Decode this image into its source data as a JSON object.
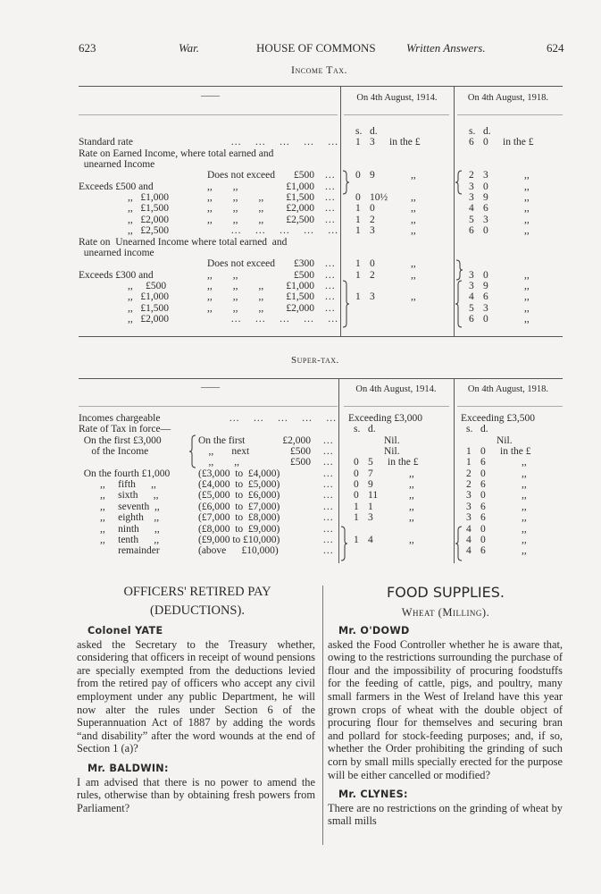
{
  "header": {
    "page_left": "623",
    "section_left": "War.",
    "title": "HOUSE OF COMMONS",
    "section_right": "Written Answers.",
    "page_right": "624"
  },
  "income_tax": {
    "title": "Income Tax.",
    "col0_header": "——",
    "col1_header": "On 4th August, 1914.",
    "col2_header": "On 4th August, 1918.",
    "rows": [
      {
        "t": "",
        "a": [
          "s.",
          "d.",
          ""
        ],
        "b": [
          "s.",
          "d.",
          ""
        ]
      },
      {
        "t": "Standard rate",
        "lead": true,
        "a": [
          "1",
          "3",
          "in the £"
        ],
        "b": [
          "6",
          "0",
          "in the £"
        ]
      },
      {
        "t": "Rate on Earned Income, where total earned and",
        "a": [
          "",
          "",
          ""
        ],
        "b": [
          "",
          "",
          ""
        ]
      },
      {
        "t": "  unearned Income",
        "a": [
          "",
          "",
          ""
        ],
        "b": [
          "",
          "",
          ""
        ]
      },
      {
        "m": "Does not exceed",
        "r": "£500",
        "dots": true,
        "a": [
          "0",
          "9",
          ",,"
        ],
        "b": [
          "2",
          "3",
          ",,"
        ]
      },
      {
        "t": "Exceeds £500 and",
        "m": ",,        ,,",
        "r": "£1,000",
        "dots": true,
        "a": [
          "",
          "",
          ""
        ],
        "b": [
          "3",
          "0",
          ",,"
        ]
      },
      {
        "s": ",,   £1,000",
        "m": ",,        ,,        ,,",
        "r": "£1,500",
        "dots": true,
        "a": [
          "0",
          "10½",
          ",,"
        ],
        "b": [
          "3",
          "9",
          ",,"
        ]
      },
      {
        "s": ",,   £1,500",
        "m": ",,        ,,        ,,",
        "r": "£2,000",
        "dots": true,
        "a": [
          "1",
          "0",
          ",,"
        ],
        "b": [
          "4",
          "6",
          ",,"
        ]
      },
      {
        "s": ",,   £2,000",
        "m": ",,        ,,        ,,",
        "r": "£2,500",
        "dots": true,
        "a": [
          "1",
          "2",
          ",,"
        ],
        "b": [
          "5",
          "3",
          ",,"
        ]
      },
      {
        "s": ",,   £2,500",
        "lead": true,
        "a": [
          "1",
          "3",
          ",,"
        ],
        "b": [
          "6",
          "0",
          ",,"
        ]
      },
      {
        "t": "Rate on  Unearned Income where total earned  and",
        "a": [
          "",
          "",
          ""
        ],
        "b": [
          "",
          "",
          ""
        ]
      },
      {
        "t": "  unearned income",
        "a": [
          "",
          "",
          ""
        ],
        "b": [
          "",
          "",
          ""
        ]
      },
      {
        "m": "Does not exceed",
        "r": "£300",
        "dots": true,
        "a": [
          "1",
          "0",
          ",,"
        ],
        "b": [
          "",
          "",
          ""
        ]
      },
      {
        "t": "Exceeds £300 and",
        "m": ",,        ,,",
        "r": "£500",
        "dots": true,
        "a": [
          "1",
          "2",
          ",,"
        ],
        "b": [
          "3",
          "0",
          ",,"
        ]
      },
      {
        "s": ",,     £500",
        "m": ",,        ,,        ,,",
        "r": "£1,000",
        "dots": true,
        "a": [
          "",
          "",
          ""
        ],
        "b": [
          "3",
          "9",
          ",,"
        ]
      },
      {
        "s": ",,   £1,000",
        "m": ",,        ,,        ,,",
        "r": "£1,500",
        "dots": true,
        "a": [
          "1",
          "3",
          ",,"
        ],
        "b": [
          "4",
          "6",
          ",,"
        ]
      },
      {
        "s": ",,   £1,500",
        "m": ",,        ,,        ,,",
        "r": "£2,000",
        "dots": true,
        "a": [
          "",
          "",
          ""
        ],
        "b": [
          "5",
          "3",
          ",,"
        ]
      },
      {
        "s": ",,   £2,000",
        "lead": true,
        "a": [
          "",
          "",
          ""
        ],
        "b": [
          "6",
          "0",
          ",,"
        ]
      }
    ]
  },
  "super_tax": {
    "title": "Super-tax.",
    "col0_header": "——",
    "col1_header": "On 4th August, 1914.",
    "col2_header": "On 4th August, 1918.",
    "rows": [
      {
        "t": "Incomes chargeable",
        "lead": true,
        "a": [
          "Exceeding £3,000",
          "",
          ""
        ],
        "b": [
          "Exceeding £3,500",
          "",
          ""
        ]
      },
      {
        "t": "Rate of Tax in force—",
        "a": [
          "s.",
          "d.",
          ""
        ],
        "b": [
          "s.",
          "d.",
          ""
        ]
      },
      {
        "t": "  On the first £3,000",
        "p": "On the first",
        "r": "£2,000",
        "dots": true,
        "a": [
          "",
          "",
          "Nil."
        ],
        "b": [
          "",
          "",
          "Nil."
        ]
      },
      {
        "t": "     of the Income",
        "p": "    ,,       next",
        "r": "£500",
        "dots": true,
        "a": [
          "",
          "",
          "Nil."
        ],
        "b": [
          "1",
          "0",
          "in the £"
        ]
      },
      {
        "p": "    ,,        ,,",
        "r": "£500",
        "dots": true,
        "a": [
          "0",
          "5",
          "in the £"
        ],
        "b": [
          "1",
          "6",
          ",,"
        ]
      },
      {
        "t": "  On the fourth £1,000",
        "p": "(£3,000  to  £4,000)",
        "dots": true,
        "a": [
          "0",
          "7",
          ",,"
        ],
        "b": [
          "2",
          "0",
          ",,"
        ]
      },
      {
        "s": ",,     fifth      ,,",
        "p": "(£4,000  to  £5,000)",
        "dots": true,
        "a": [
          "0",
          "9",
          ",,"
        ],
        "b": [
          "2",
          "6",
          ",,"
        ]
      },
      {
        "s": ",,     sixth      ,,",
        "p": "(£5,000  to  £6,000)",
        "dots": true,
        "a": [
          "0",
          "11",
          ",,"
        ],
        "b": [
          "3",
          "0",
          ",,"
        ]
      },
      {
        "s": ",,     seventh  ,,",
        "p": "(£6,000  to  £7,000)",
        "dots": true,
        "a": [
          "1",
          "1",
          ",,"
        ],
        "b": [
          "3",
          "6",
          ",,"
        ]
      },
      {
        "s": ",,     eighth    ,,",
        "p": "(£7,000  to  £8,000)",
        "dots": true,
        "a": [
          "1",
          "3",
          ",,"
        ],
        "b": [
          "3",
          "6",
          ",,"
        ]
      },
      {
        "s": ",,     ninth      ,,",
        "p": "(£8,000  to  £9,000)",
        "dots": true,
        "a": [
          "",
          "",
          ""
        ],
        "b": [
          "4",
          "0",
          ",,"
        ]
      },
      {
        "s": ",,     tenth      ,,",
        "p": "(£9,000 to £10,000)",
        "dots": true,
        "a": [
          "1",
          "4",
          ",,"
        ],
        "b": [
          "4",
          "0",
          ",,"
        ]
      },
      {
        "s": "       remainder",
        "p": "(above      £10,000)",
        "dots": true,
        "a": [
          "",
          "",
          ""
        ],
        "b": [
          "4",
          "6",
          ",,"
        ]
      }
    ]
  },
  "left_article": {
    "title": "OFFICERS' RETIRED PAY",
    "subtitle": "(DEDUCTIONS).",
    "paragraphs": [
      {
        "speaker": "Colonel YATE",
        "text": " asked the Secretary to the Treasury whether, considering that officers in receipt of wound pensions are specially exempted from the deductions levied from the retired pay of officers who accept any civil employment under any public Department, he will now alter the rules under Section 6 of the Superannuation Act of 1887 by adding the words “and disability” after the word wounds at the end of Section 1 (a)?"
      },
      {
        "speaker": "Mr. BALDWIN:",
        "text": " I am advised that there is no power to amend the rules, otherwise than by obtaining fresh powers from Parliament?"
      }
    ]
  },
  "right_article": {
    "title": "FOOD SUPPLIES.",
    "subtitle": "Wheat (Milling).",
    "paragraphs": [
      {
        "speaker": "Mr. O'DOWD",
        "text": " asked the Food Controller whether he is aware that, owing to the restrictions surrounding the purchase of flour and the impossibility of procuring foodstuffs for the feeding of cattle, pigs, and poultry, many small farmers in the West of Ireland have this year grown crops of wheat with the double object of procuring flour for themselves and securing bran and pollard for stock-feeding purposes; and, if so, whether the Order prohibiting the grinding of such corn by small mills specially erected for the purpose will be either cancelled or modified?"
      },
      {
        "speaker": "Mr. CLYNES:",
        "text": " There are no restrictions on the grinding of wheat by small mills"
      }
    ]
  }
}
